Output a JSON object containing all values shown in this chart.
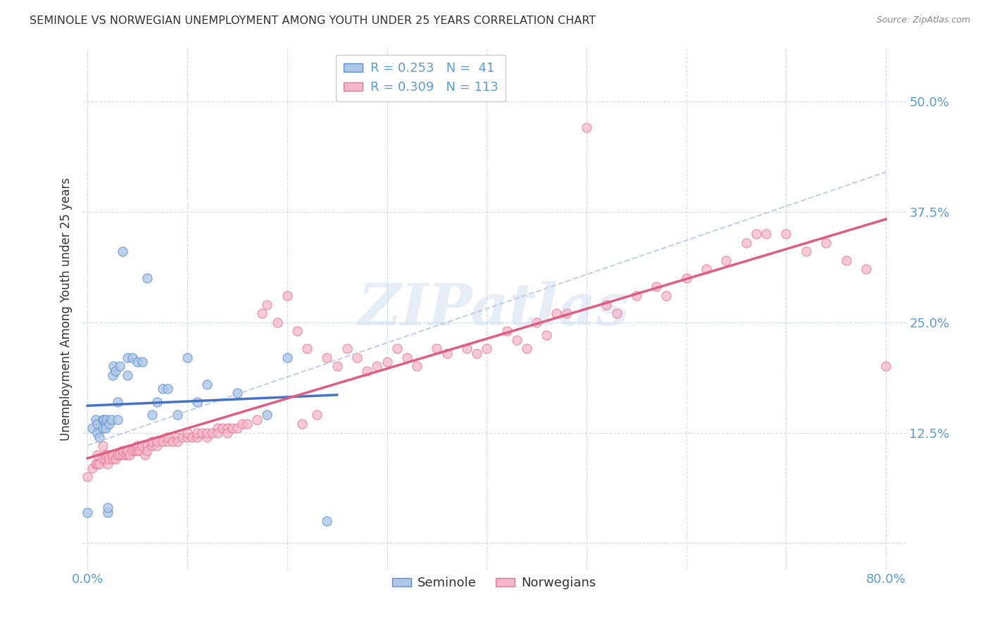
{
  "title": "SEMINOLE VS NORWEGIAN UNEMPLOYMENT AMONG YOUTH UNDER 25 YEARS CORRELATION CHART",
  "source": "Source: ZipAtlas.com",
  "ylabel": "Unemployment Among Youth under 25 years",
  "watermark": "ZIPatlas",
  "xlim": [
    -0.005,
    0.82
  ],
  "ylim": [
    -0.03,
    0.56
  ],
  "yticks": [
    0.0,
    0.125,
    0.25,
    0.375,
    0.5
  ],
  "ytick_labels": [
    "",
    "12.5%",
    "25.0%",
    "37.5%",
    "50.0%"
  ],
  "xticks": [
    0.0,
    0.1,
    0.2,
    0.3,
    0.4,
    0.5,
    0.6,
    0.7,
    0.8
  ],
  "xtick_labels": [
    "0.0%",
    "",
    "",
    "",
    "",
    "",
    "",
    "",
    "80.0%"
  ],
  "color_seminole_fill": "#aec6e8",
  "color_seminole_edge": "#5b8fc9",
  "color_norwegian_fill": "#f5b8c8",
  "color_norwegian_edge": "#e87090",
  "color_line_seminole": "#4472c4",
  "color_line_norwegian": "#e05c80",
  "color_dashed": "#b8cce4",
  "title_color": "#333333",
  "source_color": "#888888",
  "axis_label_color": "#333333",
  "tick_label_color": "#5b9bd5",
  "grid_color": "#c8d8e8",
  "seminole_x": [
    0.0,
    0.005,
    0.008,
    0.01,
    0.01,
    0.012,
    0.015,
    0.015,
    0.016,
    0.018,
    0.018,
    0.019,
    0.02,
    0.02,
    0.022,
    0.024,
    0.025,
    0.026,
    0.028,
    0.03,
    0.03,
    0.032,
    0.035,
    0.04,
    0.04,
    0.045,
    0.05,
    0.055,
    0.06,
    0.065,
    0.07,
    0.075,
    0.08,
    0.09,
    0.1,
    0.11,
    0.12,
    0.15,
    0.18,
    0.2,
    0.24
  ],
  "seminole_y": [
    0.035,
    0.13,
    0.14,
    0.135,
    0.125,
    0.12,
    0.13,
    0.14,
    0.14,
    0.135,
    0.13,
    0.14,
    0.035,
    0.04,
    0.135,
    0.14,
    0.19,
    0.2,
    0.195,
    0.14,
    0.16,
    0.2,
    0.33,
    0.19,
    0.21,
    0.21,
    0.205,
    0.205,
    0.3,
    0.145,
    0.16,
    0.175,
    0.175,
    0.145,
    0.21,
    0.16,
    0.18,
    0.17,
    0.145,
    0.21,
    0.025
  ],
  "norwegian_x": [
    0.0,
    0.005,
    0.008,
    0.01,
    0.01,
    0.012,
    0.015,
    0.015,
    0.018,
    0.018,
    0.02,
    0.02,
    0.022,
    0.025,
    0.025,
    0.028,
    0.03,
    0.03,
    0.032,
    0.035,
    0.035,
    0.038,
    0.04,
    0.04,
    0.042,
    0.045,
    0.048,
    0.05,
    0.05,
    0.052,
    0.055,
    0.058,
    0.06,
    0.06,
    0.065,
    0.065,
    0.07,
    0.07,
    0.075,
    0.08,
    0.08,
    0.085,
    0.09,
    0.09,
    0.095,
    0.1,
    0.1,
    0.105,
    0.11,
    0.11,
    0.115,
    0.12,
    0.12,
    0.125,
    0.13,
    0.13,
    0.135,
    0.14,
    0.14,
    0.145,
    0.15,
    0.155,
    0.16,
    0.17,
    0.175,
    0.18,
    0.19,
    0.2,
    0.21,
    0.215,
    0.22,
    0.23,
    0.24,
    0.25,
    0.26,
    0.27,
    0.28,
    0.29,
    0.3,
    0.31,
    0.32,
    0.33,
    0.35,
    0.36,
    0.38,
    0.39,
    0.4,
    0.42,
    0.43,
    0.44,
    0.45,
    0.46,
    0.47,
    0.48,
    0.5,
    0.52,
    0.53,
    0.55,
    0.57,
    0.58,
    0.6,
    0.62,
    0.64,
    0.66,
    0.67,
    0.68,
    0.7,
    0.72,
    0.74,
    0.76,
    0.78,
    0.8
  ],
  "norwegian_y": [
    0.075,
    0.085,
    0.09,
    0.09,
    0.1,
    0.09,
    0.095,
    0.11,
    0.095,
    0.1,
    0.09,
    0.1,
    0.095,
    0.095,
    0.1,
    0.095,
    0.1,
    0.1,
    0.1,
    0.1,
    0.105,
    0.1,
    0.1,
    0.105,
    0.1,
    0.105,
    0.105,
    0.105,
    0.11,
    0.105,
    0.11,
    0.1,
    0.11,
    0.105,
    0.11,
    0.115,
    0.11,
    0.115,
    0.115,
    0.115,
    0.12,
    0.115,
    0.12,
    0.115,
    0.12,
    0.12,
    0.125,
    0.12,
    0.12,
    0.125,
    0.125,
    0.12,
    0.125,
    0.125,
    0.13,
    0.125,
    0.13,
    0.13,
    0.125,
    0.13,
    0.13,
    0.135,
    0.135,
    0.14,
    0.26,
    0.27,
    0.25,
    0.28,
    0.24,
    0.135,
    0.22,
    0.145,
    0.21,
    0.2,
    0.22,
    0.21,
    0.195,
    0.2,
    0.205,
    0.22,
    0.21,
    0.2,
    0.22,
    0.215,
    0.22,
    0.215,
    0.22,
    0.24,
    0.23,
    0.22,
    0.25,
    0.235,
    0.26,
    0.26,
    0.47,
    0.27,
    0.26,
    0.28,
    0.29,
    0.28,
    0.3,
    0.31,
    0.32,
    0.34,
    0.35,
    0.35,
    0.35,
    0.33,
    0.34,
    0.32,
    0.31,
    0.2
  ]
}
